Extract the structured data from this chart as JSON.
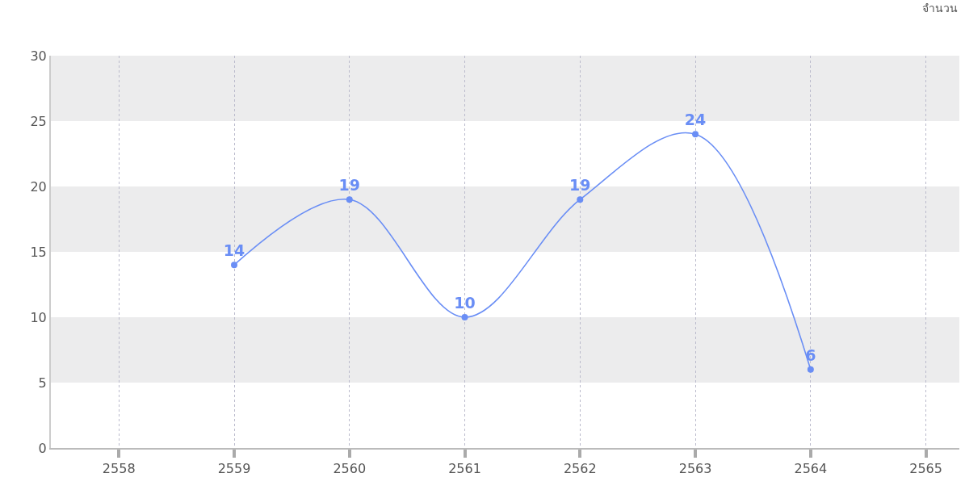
{
  "chart_data": {
    "type": "line",
    "ylabel": "จำนวน",
    "categories": [
      "2558",
      "2559",
      "2560",
      "2561",
      "2562",
      "2563",
      "2564",
      "2565"
    ],
    "series": [
      {
        "color": "#6a8ef5",
        "values": [
          null,
          14,
          19,
          10,
          19,
          24,
          6,
          null
        ]
      }
    ],
    "ylim": [
      0,
      30
    ],
    "yticks": [
      0,
      5,
      10,
      15,
      20,
      25,
      30
    ],
    "bands": [
      {
        "axis": "y",
        "from": 5,
        "to": 10,
        "color": "#ececed"
      },
      {
        "axis": "y",
        "from": 15,
        "to": 20,
        "color": "#ececed"
      },
      {
        "axis": "y",
        "from": 25,
        "to": 30,
        "color": "#ececed"
      }
    ],
    "grid": "x",
    "marker": "circle",
    "line_style": "solid",
    "data_labels": true
  }
}
